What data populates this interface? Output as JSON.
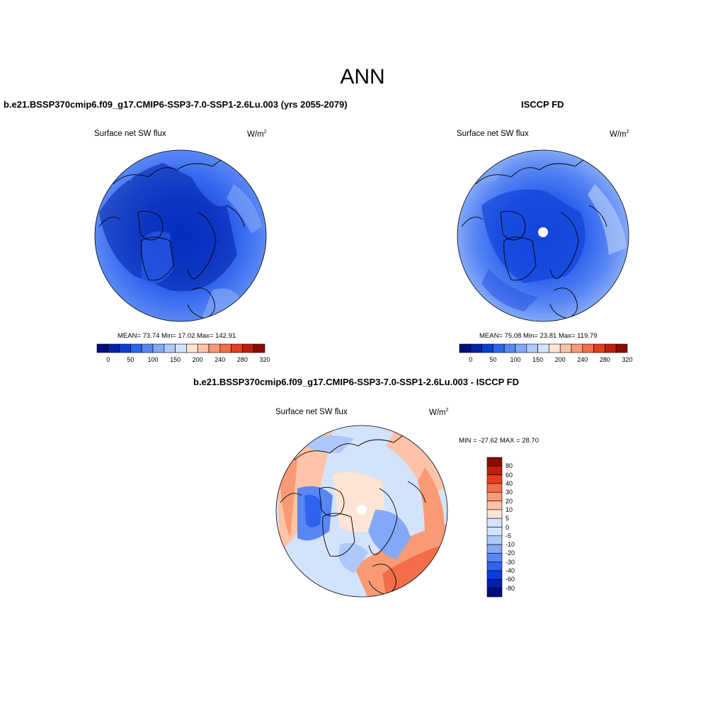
{
  "title": "ANN",
  "colors": {
    "abs_scale": [
      "#000e7e",
      "#0021a8",
      "#0a3dd6",
      "#2e63ee",
      "#5986f3",
      "#83a8f7",
      "#aec8fa",
      "#d3e3fc",
      "#fde4d4",
      "#fcc3a6",
      "#f99a75",
      "#f26d48",
      "#e33f1e",
      "#c21d0a",
      "#8a0b00"
    ],
    "diff_scale": [
      "#000e7e",
      "#0021a8",
      "#0a3dd6",
      "#2e63ee",
      "#5986f3",
      "#83a8f7",
      "#aec8fa",
      "#d3e3fc",
      "#fde4d4",
      "#fcc3a6",
      "#f99a75",
      "#f26d48",
      "#e33f1e",
      "#c21d0a",
      "#8a0b00"
    ]
  },
  "panels": {
    "model": {
      "title": "b.e21.BSSP370cmip6.f09_g17.CMIP6-SSP3-7.0-SSP1-2.6Lu.003 (yrs 2055-2079)",
      "variable": "Surface net SW flux",
      "units": "W/m",
      "units_sup": "2",
      "stats": "MEAN=  73.74  Min=  17.02  Max= 142.91",
      "colorbar_labels": [
        "0",
        "50",
        "100",
        "150",
        "200",
        "240",
        "280",
        "320"
      ]
    },
    "obs": {
      "title": "ISCCP FD",
      "variable": "Surface net SW flux",
      "units": "W/m",
      "units_sup": "2",
      "stats": "MEAN=  75.08  Min=  23.81  Max= 119.79",
      "colorbar_labels": [
        "0",
        "50",
        "100",
        "150",
        "200",
        "240",
        "280",
        "320"
      ]
    },
    "diff": {
      "title": "b.e21.BSSP370cmip6.f09_g17.CMIP6-SSP3-7.0-SSP1-2.6Lu.003 - ISCCP FD",
      "variable": "Surface net SW flux",
      "units": "W/m",
      "units_sup": "2",
      "stats": "MIN = -27.62 MAX =  28.70",
      "colorbar_labels": [
        "80",
        "60",
        "40",
        "30",
        "20",
        "10",
        "5",
        "0",
        "-5",
        "-10",
        "-20",
        "-30",
        "-40",
        "-60",
        "-80"
      ]
    }
  }
}
